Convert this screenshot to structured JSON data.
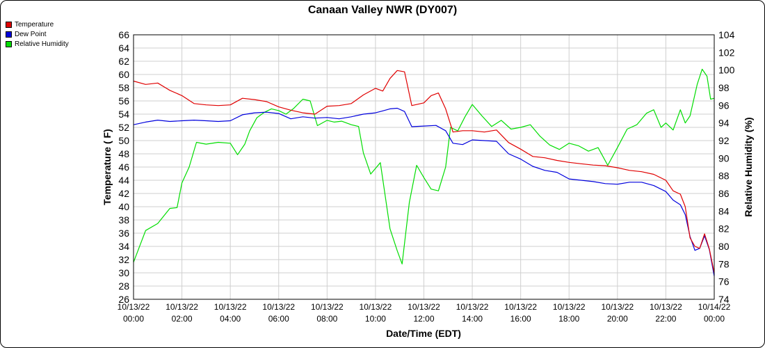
{
  "chart_data": {
    "type": "line",
    "title": "Canaan Valley NWR (DY007)",
    "xlabel": "Date/Time (EDT)",
    "ylabel_left": "Temperature ( F)",
    "ylabel_right": "Relative Humidity (%)",
    "xlim_hours": [
      0,
      24
    ],
    "ylim_left": [
      26,
      66
    ],
    "ylim_right": [
      74,
      104
    ],
    "y_ticks_left": [
      26,
      28,
      30,
      32,
      34,
      36,
      38,
      40,
      42,
      44,
      46,
      48,
      50,
      52,
      54,
      56,
      58,
      60,
      62,
      64,
      66
    ],
    "y_ticks_right": [
      74,
      76,
      78,
      80,
      82,
      84,
      86,
      88,
      90,
      92,
      94,
      96,
      98,
      100,
      102,
      104
    ],
    "x_ticks": [
      {
        "h": 0,
        "date": "10/13/22",
        "time": "00:00"
      },
      {
        "h": 2,
        "date": "10/13/22",
        "time": "02:00"
      },
      {
        "h": 4,
        "date": "10/13/22",
        "time": "04:00"
      },
      {
        "h": 6,
        "date": "10/13/22",
        "time": "06:00"
      },
      {
        "h": 8,
        "date": "10/13/22",
        "time": "08:00"
      },
      {
        "h": 10,
        "date": "10/13/22",
        "time": "10:00"
      },
      {
        "h": 12,
        "date": "10/13/22",
        "time": "12:00"
      },
      {
        "h": 14,
        "date": "10/13/22",
        "time": "14:00"
      },
      {
        "h": 16,
        "date": "10/13/22",
        "time": "16:00"
      },
      {
        "h": 18,
        "date": "10/13/22",
        "time": "18:00"
      },
      {
        "h": 20,
        "date": "10/13/22",
        "time": "20:00"
      },
      {
        "h": 22,
        "date": "10/13/22",
        "time": "22:00"
      },
      {
        "h": 24,
        "date": "10/14/22",
        "time": "00:00"
      }
    ],
    "grid": true,
    "legend_position": "top-left",
    "series": [
      {
        "name": "Temperature",
        "axis": "left",
        "color": "#e00000",
        "points": [
          [
            0,
            59
          ],
          [
            0.5,
            58.5
          ],
          [
            1,
            58.7
          ],
          [
            1.5,
            57.6
          ],
          [
            2,
            56.8
          ],
          [
            2.5,
            55.6
          ],
          [
            3,
            55.4
          ],
          [
            3.5,
            55.3
          ],
          [
            4,
            55.4
          ],
          [
            4.5,
            56.4
          ],
          [
            5,
            56.2
          ],
          [
            5.5,
            55.9
          ],
          [
            6,
            55.1
          ],
          [
            6.5,
            54.6
          ],
          [
            7,
            54.2
          ],
          [
            7.5,
            54
          ],
          [
            8,
            55.2
          ],
          [
            8.5,
            55.3
          ],
          [
            9,
            55.6
          ],
          [
            9.5,
            56.9
          ],
          [
            10,
            57.9
          ],
          [
            10.3,
            57.5
          ],
          [
            10.6,
            59.4
          ],
          [
            10.9,
            60.6
          ],
          [
            11.2,
            60.4
          ],
          [
            11.5,
            55.3
          ],
          [
            12,
            55.7
          ],
          [
            12.3,
            56.8
          ],
          [
            12.6,
            57.2
          ],
          [
            12.9,
            54.8
          ],
          [
            13.2,
            51.3
          ],
          [
            13.6,
            51.5
          ],
          [
            14,
            51.5
          ],
          [
            14.5,
            51.3
          ],
          [
            15,
            51.6
          ],
          [
            15.5,
            49.7
          ],
          [
            16,
            48.7
          ],
          [
            16.5,
            47.6
          ],
          [
            17,
            47.4
          ],
          [
            17.5,
            47
          ],
          [
            18,
            46.7
          ],
          [
            18.5,
            46.5
          ],
          [
            19,
            46.3
          ],
          [
            19.5,
            46.2
          ],
          [
            20,
            45.9
          ],
          [
            20.5,
            45.5
          ],
          [
            21,
            45.3
          ],
          [
            21.5,
            44.9
          ],
          [
            22,
            44
          ],
          [
            22.3,
            42.4
          ],
          [
            22.6,
            41.9
          ],
          [
            22.8,
            40
          ],
          [
            23,
            35.3
          ],
          [
            23.2,
            34
          ],
          [
            23.4,
            33.7
          ],
          [
            23.6,
            35.9
          ],
          [
            23.8,
            33.6
          ],
          [
            24,
            30
          ]
        ]
      },
      {
        "name": "Dew Point",
        "axis": "left",
        "color": "#0000dd",
        "points": [
          [
            0,
            52.4
          ],
          [
            0.5,
            52.8
          ],
          [
            1,
            53.1
          ],
          [
            1.5,
            52.9
          ],
          [
            2,
            53
          ],
          [
            2.5,
            53.1
          ],
          [
            3,
            53
          ],
          [
            3.5,
            52.9
          ],
          [
            4,
            53
          ],
          [
            4.5,
            53.9
          ],
          [
            5,
            54.2
          ],
          [
            5.5,
            54.3
          ],
          [
            6,
            54.1
          ],
          [
            6.5,
            53.3
          ],
          [
            7,
            53.6
          ],
          [
            7.5,
            53.4
          ],
          [
            8,
            53.5
          ],
          [
            8.5,
            53.3
          ],
          [
            9,
            53.6
          ],
          [
            9.5,
            54
          ],
          [
            10,
            54.2
          ],
          [
            10.3,
            54.5
          ],
          [
            10.6,
            54.8
          ],
          [
            10.9,
            54.9
          ],
          [
            11.2,
            54.4
          ],
          [
            11.5,
            52.1
          ],
          [
            12,
            52.2
          ],
          [
            12.5,
            52.3
          ],
          [
            12.9,
            51.5
          ],
          [
            13.2,
            49.6
          ],
          [
            13.6,
            49.4
          ],
          [
            14,
            50.1
          ],
          [
            14.5,
            50
          ],
          [
            15,
            49.9
          ],
          [
            15.5,
            48
          ],
          [
            16,
            47.2
          ],
          [
            16.5,
            46.1
          ],
          [
            17,
            45.5
          ],
          [
            17.5,
            45.2
          ],
          [
            18,
            44.2
          ],
          [
            18.5,
            44
          ],
          [
            19,
            43.8
          ],
          [
            19.5,
            43.5
          ],
          [
            20,
            43.4
          ],
          [
            20.5,
            43.7
          ],
          [
            21,
            43.7
          ],
          [
            21.5,
            43.2
          ],
          [
            22,
            42.3
          ],
          [
            22.3,
            41
          ],
          [
            22.6,
            40.3
          ],
          [
            22.8,
            38.8
          ],
          [
            23,
            35.5
          ],
          [
            23.2,
            33.4
          ],
          [
            23.4,
            33.7
          ],
          [
            23.6,
            35.6
          ],
          [
            23.8,
            33.5
          ],
          [
            24,
            29.5
          ]
        ]
      },
      {
        "name": "Relative Humidity",
        "axis": "right",
        "color": "#00dd00",
        "points": [
          [
            0,
            78.2
          ],
          [
            0.5,
            81.8
          ],
          [
            1,
            82.6
          ],
          [
            1.5,
            84.3
          ],
          [
            1.8,
            84.4
          ],
          [
            2,
            87.2
          ],
          [
            2.3,
            89
          ],
          [
            2.6,
            91.8
          ],
          [
            3,
            91.6
          ],
          [
            3.5,
            91.8
          ],
          [
            4,
            91.7
          ],
          [
            4.3,
            90.4
          ],
          [
            4.6,
            91.6
          ],
          [
            4.8,
            93.1
          ],
          [
            5.1,
            94.6
          ],
          [
            5.4,
            95.2
          ],
          [
            5.7,
            95.6
          ],
          [
            6,
            95.4
          ],
          [
            6.3,
            95
          ],
          [
            6.6,
            95.6
          ],
          [
            7,
            96.7
          ],
          [
            7.3,
            96.5
          ],
          [
            7.6,
            93.7
          ],
          [
            8,
            94.3
          ],
          [
            8.3,
            94.1
          ],
          [
            8.6,
            94.2
          ],
          [
            9,
            93.8
          ],
          [
            9.3,
            93.6
          ],
          [
            9.5,
            90.6
          ],
          [
            9.8,
            88.2
          ],
          [
            10.2,
            89.5
          ],
          [
            10.6,
            82
          ],
          [
            10.9,
            79.5
          ],
          [
            11.1,
            78
          ],
          [
            11.4,
            85
          ],
          [
            11.7,
            89.2
          ],
          [
            12,
            87.8
          ],
          [
            12.3,
            86.5
          ],
          [
            12.6,
            86.3
          ],
          [
            12.9,
            89
          ],
          [
            13.1,
            93.5
          ],
          [
            13.4,
            93.1
          ],
          [
            13.7,
            94.7
          ],
          [
            14,
            96.1
          ],
          [
            14.4,
            94.8
          ],
          [
            14.8,
            93.6
          ],
          [
            15.2,
            94.3
          ],
          [
            15.6,
            93.3
          ],
          [
            16,
            93.5
          ],
          [
            16.4,
            93.8
          ],
          [
            16.8,
            92.5
          ],
          [
            17.2,
            91.5
          ],
          [
            17.6,
            91
          ],
          [
            18,
            91.7
          ],
          [
            18.4,
            91.4
          ],
          [
            18.8,
            90.8
          ],
          [
            19.2,
            91.2
          ],
          [
            19.6,
            89.2
          ],
          [
            20,
            91.2
          ],
          [
            20.4,
            93.3
          ],
          [
            20.8,
            93.8
          ],
          [
            21.2,
            95.1
          ],
          [
            21.5,
            95.5
          ],
          [
            21.8,
            93.5
          ],
          [
            22,
            94
          ],
          [
            22.3,
            93.2
          ],
          [
            22.6,
            95.5
          ],
          [
            22.8,
            94
          ],
          [
            23,
            94.8
          ],
          [
            23.3,
            98.4
          ],
          [
            23.5,
            100.1
          ],
          [
            23.7,
            99.3
          ],
          [
            23.85,
            96.7
          ],
          [
            24,
            96.8
          ]
        ]
      }
    ]
  }
}
